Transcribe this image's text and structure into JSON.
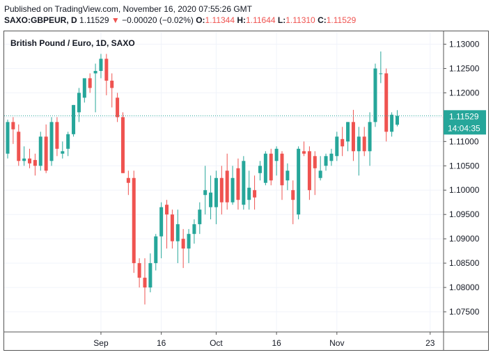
{
  "header": {
    "published": "Published on TradingView.com, November 16, 2020 07:55:26 GMT",
    "symbol": "SAXO:GBPEUR, D",
    "price": "1.11529",
    "arrow": "▼",
    "change": "−0.00020 (−0.02%)",
    "o_label": "O:",
    "o_value": "1.11344",
    "h_label": "H:",
    "h_value": "1.11644",
    "l_label": "L:",
    "l_value": "1.11310",
    "c_label": "C:",
    "c_value": "1.11529"
  },
  "colors": {
    "up": "#26a69a",
    "down": "#ef5350",
    "last_line": "#26a69a"
  },
  "chart_data": {
    "type": "candlestick",
    "title": "British Pound / Euro, 1D, SAXO",
    "y_ticks": [
      "1.13000",
      "1.12500",
      "1.12000",
      "1.11500",
      "1.11000",
      "1.10500",
      "1.10000",
      "1.09500",
      "1.09000",
      "1.08500",
      "1.08000",
      "1.07500"
    ],
    "y_tick_values": [
      1.13,
      1.125,
      1.12,
      1.115,
      1.11,
      1.105,
      1.1,
      1.095,
      1.09,
      1.085,
      1.08,
      1.075
    ],
    "ylim": [
      1.071,
      1.1325
    ],
    "x_ticks": [
      {
        "label": "Sep",
        "day": 17
      },
      {
        "label": "16",
        "day": 28
      },
      {
        "label": "Oct",
        "day": 38
      },
      {
        "label": "16",
        "day": 49
      },
      {
        "label": "Nov",
        "day": 60
      },
      {
        "label": "23",
        "day": 77
      }
    ],
    "last_price": {
      "value": 1.11529,
      "label": "1.11529",
      "time_label": "14:04:35"
    },
    "candles": [
      {
        "o": 1.1075,
        "h": 1.1145,
        "l": 1.1065,
        "c": 1.114
      },
      {
        "o": 1.114,
        "h": 1.115,
        "l": 1.1095,
        "c": 1.1125
      },
      {
        "o": 1.112,
        "h": 1.1135,
        "l": 1.105,
        "c": 1.106
      },
      {
        "o": 1.106,
        "h": 1.109,
        "l": 1.105,
        "c": 1.1065
      },
      {
        "o": 1.1065,
        "h": 1.1085,
        "l": 1.1045,
        "c": 1.1055
      },
      {
        "o": 1.1062,
        "h": 1.1075,
        "l": 1.103,
        "c": 1.105
      },
      {
        "o": 1.105,
        "h": 1.112,
        "l": 1.104,
        "c": 1.111
      },
      {
        "o": 1.111,
        "h": 1.1135,
        "l": 1.1035,
        "c": 1.104
      },
      {
        "o": 1.106,
        "h": 1.115,
        "l": 1.105,
        "c": 1.114
      },
      {
        "o": 1.114,
        "h": 1.115,
        "l": 1.107,
        "c": 1.1085
      },
      {
        "o": 1.1075,
        "h": 1.11,
        "l": 1.1065,
        "c": 1.108
      },
      {
        "o": 1.1085,
        "h": 1.112,
        "l": 1.107,
        "c": 1.1115
      },
      {
        "o": 1.1115,
        "h": 1.1175,
        "l": 1.111,
        "c": 1.1175
      },
      {
        "o": 1.116,
        "h": 1.121,
        "l": 1.114,
        "c": 1.12
      },
      {
        "o": 1.119,
        "h": 1.1225,
        "l": 1.118,
        "c": 1.123
      },
      {
        "o": 1.123,
        "h": 1.124,
        "l": 1.12,
        "c": 1.121
      },
      {
        "o": 1.124,
        "h": 1.126,
        "l": 1.116,
        "c": 1.1245
      },
      {
        "o": 1.1245,
        "h": 1.128,
        "l": 1.123,
        "c": 1.127
      },
      {
        "o": 1.127,
        "h": 1.128,
        "l": 1.1195,
        "c": 1.1225
      },
      {
        "o": 1.1225,
        "h": 1.124,
        "l": 1.117,
        "c": 1.121
      },
      {
        "o": 1.119,
        "h": 1.12,
        "l": 1.114,
        "c": 1.115
      },
      {
        "o": 1.115,
        "h": 1.116,
        "l": 1.1035,
        "c": 1.1035
      },
      {
        "o": 1.1025,
        "h": 1.104,
        "l": 1.099,
        "c": 1.1015
      },
      {
        "o": 1.1025,
        "h": 1.104,
        "l": 1.083,
        "c": 1.085
      },
      {
        "o": 1.085,
        "h": 1.086,
        "l": 1.08,
        "c": 1.082
      },
      {
        "o": 1.082,
        "h": 1.086,
        "l": 1.0765,
        "c": 1.08
      },
      {
        "o": 1.08,
        "h": 1.087,
        "l": 1.079,
        "c": 1.085
      },
      {
        "o": 1.085,
        "h": 1.091,
        "l": 1.0835,
        "c": 1.0905
      },
      {
        "o": 1.0905,
        "h": 1.0975,
        "l": 1.086,
        "c": 1.0965
      },
      {
        "o": 1.097,
        "h": 1.098,
        "l": 1.088,
        "c": 1.095
      },
      {
        "o": 1.095,
        "h": 1.096,
        "l": 1.088,
        "c": 1.0895
      },
      {
        "o": 1.0895,
        "h": 1.096,
        "l": 1.085,
        "c": 1.093
      },
      {
        "o": 1.09,
        "h": 1.092,
        "l": 1.084,
        "c": 1.088
      },
      {
        "o": 1.088,
        "h": 1.092,
        "l": 1.085,
        "c": 1.091
      },
      {
        "o": 1.091,
        "h": 1.094,
        "l": 1.089,
        "c": 1.093
      },
      {
        "o": 1.093,
        "h": 1.0975,
        "l": 1.091,
        "c": 1.096
      },
      {
        "o": 1.099,
        "h": 1.105,
        "l": 1.095,
        "c": 1.1
      },
      {
        "o": 1.0965,
        "h": 1.103,
        "l": 1.094,
        "c": 1.0995
      },
      {
        "o": 1.0965,
        "h": 1.104,
        "l": 1.093,
        "c": 1.1025
      },
      {
        "o": 1.1025,
        "h": 1.105,
        "l": 1.095,
        "c": 1.0975
      },
      {
        "o": 1.104,
        "h": 1.1075,
        "l": 1.096,
        "c": 1.0975
      },
      {
        "o": 1.0975,
        "h": 1.105,
        "l": 1.097,
        "c": 1.1025
      },
      {
        "o": 1.1045,
        "h": 1.1065,
        "l": 1.096,
        "c": 1.098
      },
      {
        "o": 1.097,
        "h": 1.107,
        "l": 1.096,
        "c": 1.106
      },
      {
        "o": 1.098,
        "h": 1.104,
        "l": 1.096,
        "c": 1.1005
      },
      {
        "o": 1.1,
        "h": 1.103,
        "l": 1.096,
        "c": 1.0985
      },
      {
        "o": 1.1035,
        "h": 1.106,
        "l": 1.102,
        "c": 1.105
      },
      {
        "o": 1.1015,
        "h": 1.108,
        "l": 1.101,
        "c": 1.1075
      },
      {
        "o": 1.1075,
        "h": 1.1085,
        "l": 1.101,
        "c": 1.102
      },
      {
        "o": 1.106,
        "h": 1.109,
        "l": 1.103,
        "c": 1.1085
      },
      {
        "o": 1.1075,
        "h": 1.108,
        "l": 1.098,
        "c": 1.101
      },
      {
        "o": 1.102,
        "h": 1.1055,
        "l": 1.1,
        "c": 1.104
      },
      {
        "o": 1.1,
        "h": 1.102,
        "l": 1.093,
        "c": 1.098
      },
      {
        "o": 1.095,
        "h": 1.109,
        "l": 1.094,
        "c": 1.1085
      },
      {
        "o": 1.108,
        "h": 1.11,
        "l": 1.107,
        "c": 1.1075
      },
      {
        "o": 1.108,
        "h": 1.109,
        "l": 1.098,
        "c": 1.1
      },
      {
        "o": 1.107,
        "h": 1.108,
        "l": 1.099,
        "c": 1.1045
      },
      {
        "o": 1.1025,
        "h": 1.107,
        "l": 1.102,
        "c": 1.104
      },
      {
        "o": 1.105,
        "h": 1.1075,
        "l": 1.104,
        "c": 1.107
      },
      {
        "o": 1.106,
        "h": 1.1085,
        "l": 1.105,
        "c": 1.1075
      },
      {
        "o": 1.107,
        "h": 1.112,
        "l": 1.106,
        "c": 1.111
      },
      {
        "o": 1.1105,
        "h": 1.113,
        "l": 1.107,
        "c": 1.109
      },
      {
        "o": 1.11,
        "h": 1.114,
        "l": 1.108,
        "c": 1.114
      },
      {
        "o": 1.114,
        "h": 1.1165,
        "l": 1.106,
        "c": 1.108
      },
      {
        "o": 1.108,
        "h": 1.113,
        "l": 1.103,
        "c": 1.111
      },
      {
        "o": 1.111,
        "h": 1.113,
        "l": 1.107,
        "c": 1.108
      },
      {
        "o": 1.108,
        "h": 1.116,
        "l": 1.105,
        "c": 1.114
      },
      {
        "o": 1.114,
        "h": 1.126,
        "l": 1.113,
        "c": 1.125
      },
      {
        "o": 1.124,
        "h": 1.1285,
        "l": 1.122,
        "c": 1.124
      },
      {
        "o": 1.124,
        "h": 1.125,
        "l": 1.11,
        "c": 1.112
      },
      {
        "o": 1.112,
        "h": 1.116,
        "l": 1.111,
        "c": 1.1155
      },
      {
        "o": 1.11344,
        "h": 1.11644,
        "l": 1.1131,
        "c": 1.11529
      }
    ]
  }
}
